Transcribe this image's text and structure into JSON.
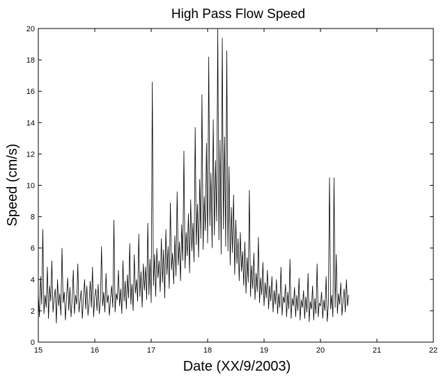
{
  "chart_data": {
    "type": "line",
    "title": "High Pass Flow Speed",
    "xlabel": "Date (XX/9/2003)",
    "ylabel": "Speed (cm/s)",
    "xlim": [
      15,
      22
    ],
    "ylim": [
      0,
      20
    ],
    "x_ticks": [
      15,
      16,
      17,
      18,
      19,
      20,
      21,
      22
    ],
    "x_tick_labels": [
      "15",
      "16",
      "17",
      "18",
      "19",
      "20",
      "21",
      "22"
    ],
    "y_ticks": [
      0,
      2,
      4,
      6,
      8,
      10,
      12,
      14,
      16,
      18,
      20
    ],
    "y_tick_labels": [
      "0",
      "2",
      "4",
      "6",
      "8",
      "10",
      "12",
      "14",
      "16",
      "18",
      "20"
    ],
    "grid": false,
    "legend": "none",
    "series": [
      {
        "color": "#000000",
        "x_start": 15,
        "x_step": 0.02,
        "values": [
          3.1,
          1.6,
          4.2,
          2.4,
          7.2,
          1.8,
          3.0,
          2.2,
          4.8,
          1.5,
          3.6,
          2.6,
          5.2,
          1.9,
          2.8,
          3.4,
          1.2,
          4.0,
          2.3,
          3.1,
          1.7,
          6.0,
          2.5,
          3.2,
          1.4,
          2.9,
          4.1,
          2.0,
          3.5,
          1.6,
          2.7,
          4.6,
          1.8,
          3.0,
          2.4,
          5.0,
          1.9,
          2.6,
          3.3,
          1.5,
          2.8,
          4.0,
          2.1,
          3.6,
          1.7,
          2.5,
          3.9,
          2.2,
          4.8,
          1.6,
          2.9,
          3.4,
          2.0,
          3.7,
          1.8,
          2.6,
          6.1,
          2.3,
          3.2,
          1.9,
          4.4,
          2.5,
          3.0,
          1.7,
          2.8,
          3.6,
          2.2,
          7.8,
          1.9,
          3.1,
          2.7,
          4.6,
          2.3,
          3.4,
          1.8,
          5.2,
          2.6,
          3.9,
          2.1,
          4.3,
          2.8,
          6.3,
          2.4,
          3.7,
          2.0,
          5.6,
          3.1,
          4.0,
          2.6,
          6.9,
          2.9,
          4.5,
          2.2,
          5.0,
          3.3,
          4.8,
          2.7,
          7.6,
          3.0,
          5.3,
          2.5,
          16.6,
          3.6,
          5.6,
          2.9,
          6.0,
          4.1,
          5.2,
          3.2,
          6.6,
          3.8,
          5.9,
          2.8,
          7.2,
          4.3,
          6.1,
          3.4,
          8.9,
          4.6,
          5.7,
          3.7,
          6.8,
          4.2,
          9.6,
          4.9,
          6.4,
          3.9,
          7.5,
          5.2,
          12.2,
          4.7,
          7.0,
          5.5,
          8.2,
          4.4,
          9.1,
          5.8,
          7.6,
          5.1,
          13.7,
          6.2,
          8.8,
          5.4,
          10.4,
          6.6,
          15.8,
          5.9,
          9.3,
          7.1,
          12.7,
          6.3,
          18.2,
          7.4,
          10.8,
          6.0,
          14.2,
          6.8,
          11.6,
          7.7,
          20.0,
          6.5,
          12.9,
          5.6,
          19.4,
          7.2,
          13.1,
          6.1,
          18.6,
          5.8,
          11.2,
          4.9,
          8.6,
          5.7,
          9.4,
          4.3,
          7.8,
          5.0,
          6.6,
          3.9,
          7.0,
          4.5,
          5.8,
          3.6,
          6.4,
          3.1,
          5.4,
          3.8,
          9.7,
          2.9,
          4.9,
          3.4,
          5.7,
          2.7,
          4.4,
          3.2,
          6.7,
          2.5,
          4.1,
          3.0,
          5.1,
          2.3,
          3.8,
          2.8,
          4.6,
          2.1,
          3.6,
          2.6,
          4.2,
          1.9,
          3.3,
          2.4,
          4.0,
          1.8,
          3.1,
          2.2,
          4.8,
          1.7,
          2.9,
          2.5,
          3.7,
          1.6,
          3.2,
          2.1,
          5.3,
          1.5,
          2.8,
          2.3,
          3.5,
          1.6,
          3.0,
          2.0,
          4.1,
          1.4,
          2.7,
          2.2,
          3.3,
          1.5,
          2.9,
          1.9,
          4.4,
          1.3,
          2.6,
          2.1,
          3.6,
          1.4,
          2.8,
          1.8,
          5.0,
          1.6,
          2.5,
          2.3,
          3.2,
          1.5,
          2.7,
          2.0,
          4.2,
          1.3,
          2.4,
          10.5,
          2.1,
          3.0,
          1.6,
          10.5,
          2.2,
          5.6,
          1.8,
          3.1,
          2.4,
          3.8,
          1.7,
          2.6,
          3.4,
          1.9,
          4.0,
          2.3,
          3.0
        ]
      }
    ]
  }
}
